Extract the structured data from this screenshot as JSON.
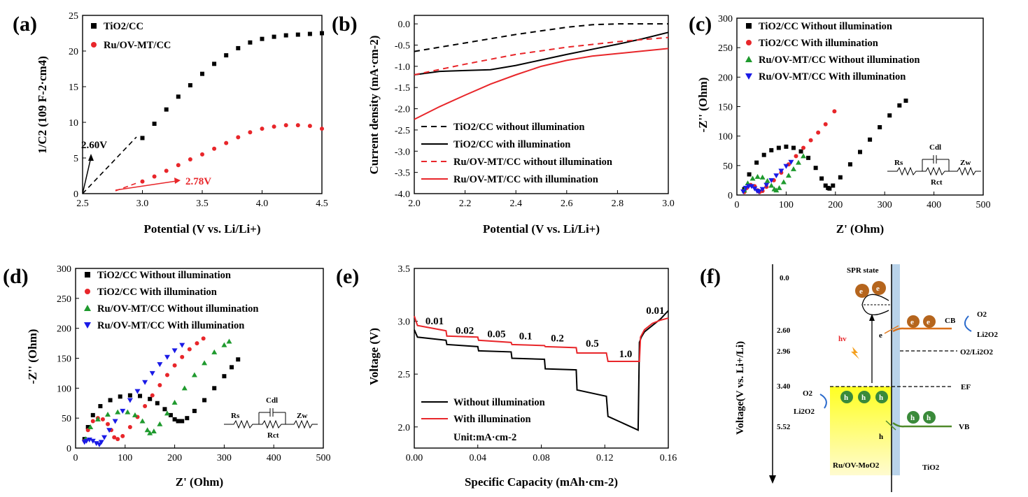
{
  "panels": {
    "a": {
      "label": "(a)"
    },
    "b": {
      "label": "(b)"
    },
    "c": {
      "label": "(c)"
    },
    "d": {
      "label": "(d)"
    },
    "e": {
      "label": "(e)"
    },
    "f": {
      "label": "(f)"
    }
  },
  "circuit": {
    "rs": "Rs",
    "cdl": "Cdl",
    "zw": "Zw",
    "rct": "Rct"
  },
  "chart_data": [
    {
      "id": "a",
      "type": "scatter",
      "xlabel": "Potential (V vs. Li/Li+)",
      "ylabel": "1/C2 (109 F-2·cm4)",
      "xlim": [
        2.5,
        4.5
      ],
      "ylim": [
        0,
        25
      ],
      "xticks": [
        "2.5",
        "3.0",
        "3.5",
        "4.0",
        "4.5"
      ],
      "yticks": [
        "0",
        "5",
        "10",
        "15",
        "20",
        "25"
      ],
      "legend_position": "top-left",
      "series": [
        {
          "name": "TiO2/CC",
          "color": "#000000",
          "marker": "square",
          "x": [
            3.0,
            3.1,
            3.2,
            3.3,
            3.4,
            3.5,
            3.6,
            3.7,
            3.8,
            3.9,
            4.0,
            4.1,
            4.2,
            4.3,
            4.4,
            4.5
          ],
          "y": [
            7.8,
            9.8,
            11.8,
            13.6,
            15.2,
            16.8,
            18.2,
            19.4,
            20.4,
            21.2,
            21.7,
            22.0,
            22.2,
            22.3,
            22.4,
            22.5
          ]
        },
        {
          "name": "Ru/OV-MT/CC",
          "color": "#e8262a",
          "marker": "circle",
          "x": [
            3.0,
            3.1,
            3.2,
            3.3,
            3.4,
            3.5,
            3.6,
            3.7,
            3.8,
            3.9,
            4.0,
            4.1,
            4.2,
            4.3,
            4.4,
            4.5
          ],
          "y": [
            1.7,
            2.4,
            3.2,
            4.0,
            4.8,
            5.5,
            6.3,
            7.1,
            7.9,
            8.6,
            9.1,
            9.4,
            9.6,
            9.6,
            9.5,
            9.1
          ]
        }
      ],
      "annotations": [
        {
          "text": "2.60V",
          "x": 2.6,
          "color": "#000000"
        },
        {
          "text": "2.78V",
          "x": 2.78,
          "color": "#e8262a"
        }
      ]
    },
    {
      "id": "b",
      "type": "line",
      "xlabel": "Potential (V vs. Li/Li+)",
      "ylabel": "Current density (mA·cm-2)",
      "xlim": [
        2.0,
        3.0
      ],
      "ylim": [
        -4.0,
        0.2
      ],
      "xticks": [
        "2.0",
        "2.2",
        "2.4",
        "2.6",
        "2.8",
        "3.0"
      ],
      "yticks": [
        "0.0",
        "-0.5",
        "-1.0",
        "-1.5",
        "-2.0",
        "-2.5",
        "-3.0",
        "-3.5",
        "-4.0"
      ],
      "legend_position": "bottom-left",
      "series": [
        {
          "name": "TiO2/CC without illumination",
          "color": "#000000",
          "dash": true,
          "x": [
            2.0,
            2.2,
            2.4,
            2.6,
            2.7,
            2.8,
            3.0
          ],
          "y": [
            -0.65,
            -0.45,
            -0.25,
            -0.08,
            -0.02,
            0.0,
            0.0
          ]
        },
        {
          "name": "TiO2/CC with illumination",
          "color": "#000000",
          "dash": false,
          "x": [
            2.0,
            2.1,
            2.2,
            2.3,
            2.4,
            2.5,
            2.6,
            2.7,
            2.8,
            2.9,
            3.0
          ],
          "y": [
            -1.2,
            -1.12,
            -1.1,
            -1.08,
            -0.98,
            -0.85,
            -0.72,
            -0.6,
            -0.48,
            -0.35,
            -0.2
          ]
        },
        {
          "name": "Ru/OV-MT/CC without illumination",
          "color": "#e8262a",
          "dash": true,
          "x": [
            2.0,
            2.2,
            2.4,
            2.6,
            2.8,
            3.0
          ],
          "y": [
            -1.2,
            -0.95,
            -0.72,
            -0.55,
            -0.42,
            -0.32
          ]
        },
        {
          "name": "Ru/OV-MT/CC with illumination",
          "color": "#e8262a",
          "dash": false,
          "x": [
            2.0,
            2.1,
            2.2,
            2.3,
            2.4,
            2.5,
            2.6,
            2.7,
            2.8,
            2.9,
            3.0
          ],
          "y": [
            -2.25,
            -1.95,
            -1.68,
            -1.42,
            -1.2,
            -1.0,
            -0.86,
            -0.76,
            -0.7,
            -0.64,
            -0.58
          ]
        }
      ]
    },
    {
      "id": "c",
      "type": "scatter",
      "xlabel": "Z' (Ohm)",
      "ylabel": "-Z'' (Ohm)",
      "xlim": [
        0,
        500
      ],
      "ylim": [
        0,
        300
      ],
      "xticks": [
        "0",
        "100",
        "200",
        "300",
        "400",
        "500"
      ],
      "yticks": [
        "0",
        "50",
        "100",
        "150",
        "200",
        "250",
        "300"
      ],
      "legend_position": "top-left",
      "series": [
        {
          "name": "TiO2/CC Without illumination",
          "color": "#000000",
          "marker": "square",
          "x": [
            15,
            25,
            40,
            55,
            70,
            85,
            100,
            115,
            130,
            145,
            160,
            172,
            180,
            185,
            188,
            195,
            210,
            230,
            250,
            270,
            290,
            310,
            330,
            343
          ],
          "y": [
            10,
            35,
            55,
            68,
            76,
            80,
            82,
            80,
            74,
            63,
            46,
            28,
            16,
            12,
            11,
            16,
            30,
            52,
            73,
            94,
            115,
            135,
            152,
            160
          ]
        },
        {
          "name": "TiO2/CC With illumination",
          "color": "#e8262a",
          "marker": "circle",
          "x": [
            15,
            20,
            28,
            36,
            42,
            46,
            52,
            60,
            75,
            90,
            105,
            120,
            135,
            150,
            165,
            180,
            198
          ],
          "y": [
            5,
            12,
            17,
            15,
            8,
            5,
            7,
            14,
            25,
            38,
            52,
            66,
            80,
            93,
            106,
            120,
            142
          ]
        },
        {
          "name": "Ru/OV-MT/CC Without illumination",
          "color": "#1f9a2e",
          "marker": "triangle-up",
          "x": [
            15,
            22,
            32,
            42,
            52,
            62,
            70,
            76,
            80,
            86,
            95,
            105,
            115,
            125,
            135
          ],
          "y": [
            8,
            20,
            28,
            31,
            30,
            24,
            16,
            10,
            8,
            12,
            22,
            33,
            44,
            55,
            66
          ]
        },
        {
          "name": "Ru/OV-MT/CC With illumination",
          "color": "#1a1ae6",
          "marker": "triangle-down",
          "x": [
            13,
            18,
            24,
            30,
            36,
            41,
            45,
            52,
            60,
            70,
            80,
            90,
            100,
            110
          ],
          "y": [
            6,
            12,
            15,
            15,
            11,
            7,
            6,
            10,
            17,
            25,
            33,
            41,
            49,
            56
          ]
        }
      ]
    },
    {
      "id": "d",
      "type": "scatter",
      "xlabel": "Z' (Ohm)",
      "ylabel": "-Z'' (Ohm)",
      "xlim": [
        0,
        500
      ],
      "ylim": [
        0,
        300
      ],
      "xticks": [
        "0",
        "100",
        "200",
        "300",
        "400",
        "500"
      ],
      "yticks": [
        "0",
        "50",
        "100",
        "150",
        "200",
        "250",
        "300"
      ],
      "legend_position": "top-left",
      "series": [
        {
          "name": "TiO2/CC Without illumination",
          "color": "#000000",
          "marker": "square",
          "x": [
            18,
            25,
            35,
            50,
            70,
            90,
            110,
            130,
            150,
            165,
            180,
            192,
            200,
            207,
            215,
            225,
            240,
            260,
            280,
            300,
            315,
            328
          ],
          "y": [
            15,
            35,
            55,
            70,
            80,
            86,
            88,
            87,
            82,
            75,
            65,
            55,
            48,
            45,
            45,
            50,
            62,
            80,
            100,
            120,
            135,
            148
          ]
        },
        {
          "name": "TiO2/CC With illumination",
          "color": "#e8262a",
          "marker": "circle",
          "x": [
            18,
            25,
            35,
            45,
            55,
            65,
            72,
            78,
            85,
            95,
            110,
            125,
            140,
            155,
            170,
            185,
            200,
            215,
            230,
            245,
            258
          ],
          "y": [
            12,
            30,
            45,
            50,
            48,
            40,
            30,
            18,
            15,
            20,
            35,
            52,
            70,
            88,
            105,
            122,
            138,
            152,
            165,
            175,
            183
          ]
        },
        {
          "name": "Ru/OV-MT/CC Without illumination",
          "color": "#1f9a2e",
          "marker": "triangle-up",
          "x": [
            20,
            30,
            45,
            65,
            85,
            105,
            120,
            135,
            145,
            150,
            158,
            170,
            185,
            200,
            220,
            240,
            260,
            280,
            300,
            310
          ],
          "y": [
            15,
            35,
            48,
            56,
            60,
            60,
            55,
            45,
            30,
            25,
            28,
            40,
            58,
            76,
            100,
            122,
            142,
            160,
            172,
            178
          ]
        },
        {
          "name": "Ru/OV-MT/CC With illumination",
          "color": "#1a1ae6",
          "marker": "triangle-down",
          "x": [
            18,
            22,
            28,
            35,
            42,
            48,
            52,
            58,
            68,
            80,
            95,
            110,
            125,
            140,
            155,
            170,
            185,
            200,
            215
          ],
          "y": [
            10,
            12,
            14,
            12,
            8,
            6,
            10,
            18,
            30,
            45,
            62,
            80,
            95,
            110,
            125,
            140,
            152,
            163,
            172
          ]
        }
      ]
    },
    {
      "id": "e",
      "type": "line",
      "xlabel": "Specific Capacity (mAh·cm-2)",
      "ylabel": "Voltage (V)",
      "xlim": [
        0.0,
        0.16
      ],
      "ylim": [
        1.8,
        3.5
      ],
      "xticks": [
        "0.00",
        "0.04",
        "0.08",
        "0.12",
        "0.16"
      ],
      "yticks": [
        "2.0",
        "2.5",
        "3.0",
        "3.5"
      ],
      "legend_position": "bottom-left",
      "unit_note": "Unit:mA·cm-2",
      "rate_labels": [
        {
          "text": "0.01",
          "x": 0.007,
          "y": 2.97
        },
        {
          "text": "0.02",
          "x": 0.026,
          "y": 2.88
        },
        {
          "text": "0.05",
          "x": 0.046,
          "y": 2.85
        },
        {
          "text": "0.1",
          "x": 0.066,
          "y": 2.83
        },
        {
          "text": "0.2",
          "x": 0.086,
          "y": 2.81
        },
        {
          "text": "0.5",
          "x": 0.108,
          "y": 2.76
        },
        {
          "text": "1.0",
          "x": 0.129,
          "y": 2.66
        },
        {
          "text": "0.01",
          "x": 0.146,
          "y": 3.07
        }
      ],
      "series": [
        {
          "name": "Without illumination",
          "color": "#000000",
          "x": [
            0.0,
            0.002,
            0.02,
            0.0205,
            0.04,
            0.0405,
            0.061,
            0.0615,
            0.082,
            0.0825,
            0.102,
            0.1025,
            0.121,
            0.122,
            0.141,
            0.1418,
            0.143,
            0.145,
            0.15,
            0.155,
            0.16
          ],
          "y": [
            2.92,
            2.85,
            2.82,
            2.78,
            2.76,
            2.72,
            2.71,
            2.65,
            2.64,
            2.55,
            2.54,
            2.35,
            2.29,
            2.1,
            1.97,
            2.8,
            2.85,
            2.9,
            2.96,
            3.02,
            3.1
          ]
        },
        {
          "name": "With illumination",
          "color": "#e8262a",
          "x": [
            0.0,
            0.002,
            0.02,
            0.0205,
            0.04,
            0.0405,
            0.061,
            0.0615,
            0.082,
            0.0825,
            0.102,
            0.1025,
            0.121,
            0.122,
            0.1418,
            0.1425,
            0.145,
            0.15,
            0.155,
            0.16
          ],
          "y": [
            3.05,
            2.96,
            2.91,
            2.86,
            2.85,
            2.82,
            2.8,
            2.78,
            2.77,
            2.76,
            2.75,
            2.7,
            2.7,
            2.62,
            2.62,
            2.85,
            2.92,
            2.98,
            3.01,
            3.03
          ]
        }
      ]
    }
  ],
  "diagram_f": {
    "axis_label": "Voltage(V vs. Li+/Li)",
    "levels": [
      {
        "value": "0.0"
      },
      {
        "value": "2.60"
      },
      {
        "value": "2.96"
      },
      {
        "value": "3.40"
      },
      {
        "value": "5.52"
      }
    ],
    "spr_state": "SPR state",
    "cb": "CB",
    "vb": "VB",
    "ef": "EF",
    "o2_li2o2_level": "O2/Li2O2",
    "right_o2": "O2",
    "right_li2o2": "Li2O2",
    "left_o2": "O2",
    "left_li2o2": "Li2O2",
    "hv": "hv",
    "electron": "e",
    "hole": "h",
    "metal_label": "Ru/OV-MoO2",
    "semi_label": "TiO2"
  },
  "colors": {
    "red": "#e8262a",
    "green": "#1f9a2e",
    "blue": "#1a1ae6",
    "yellow": "#ffff33",
    "tio2": "#b9d3ea",
    "orange": "#e07a1f"
  }
}
